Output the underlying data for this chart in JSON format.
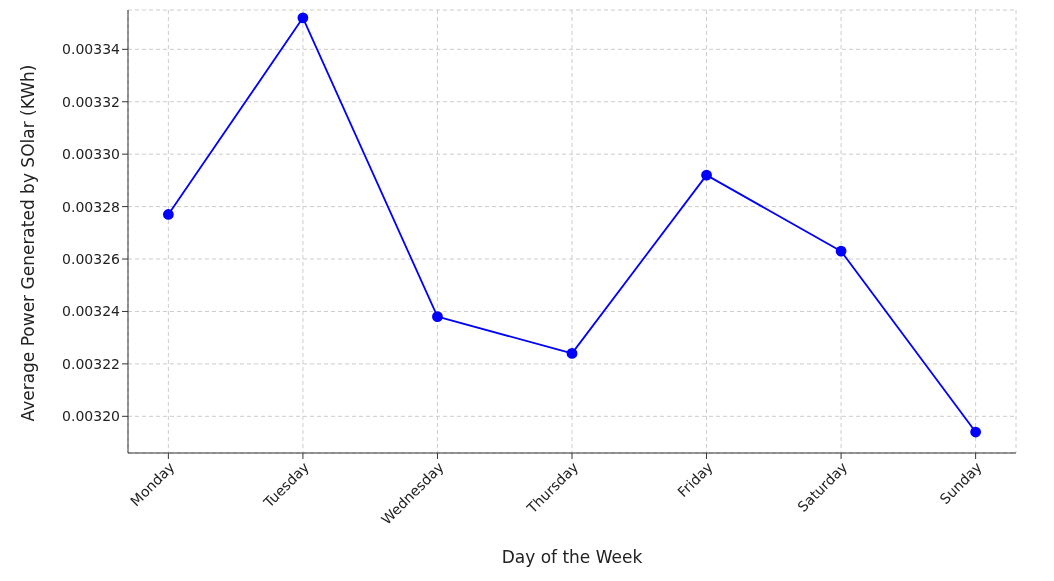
{
  "chart_data": {
    "type": "line",
    "xlabel": "Day of the Week",
    "ylabel": "Average Power Generated by SOlar (KWh)",
    "categories": [
      "Monday",
      "Tuesday",
      "Wednesday",
      "Thursday",
      "Friday",
      "Saturday",
      "Sunday"
    ],
    "series": [
      {
        "color": "#0000ff",
        "values": [
          0.003277,
          0.003352,
          0.003238,
          0.003224,
          0.003292,
          0.003263,
          0.003194
        ]
      }
    ],
    "ylim": [
      0.003186,
      0.003355
    ],
    "yticks": [
      {
        "value": 0.0032,
        "label": "0.00320"
      },
      {
        "value": 0.00322,
        "label": "0.00322"
      },
      {
        "value": 0.00324,
        "label": "0.00324"
      },
      {
        "value": 0.00326,
        "label": "0.00326"
      },
      {
        "value": 0.00328,
        "label": "0.00328"
      },
      {
        "value": 0.0033,
        "label": "0.00330"
      },
      {
        "value": 0.00332,
        "label": "0.00332"
      },
      {
        "value": 0.00334,
        "label": "0.00334"
      }
    ],
    "grid": true,
    "marker": "circle",
    "line_style": "solid",
    "legend": false
  }
}
